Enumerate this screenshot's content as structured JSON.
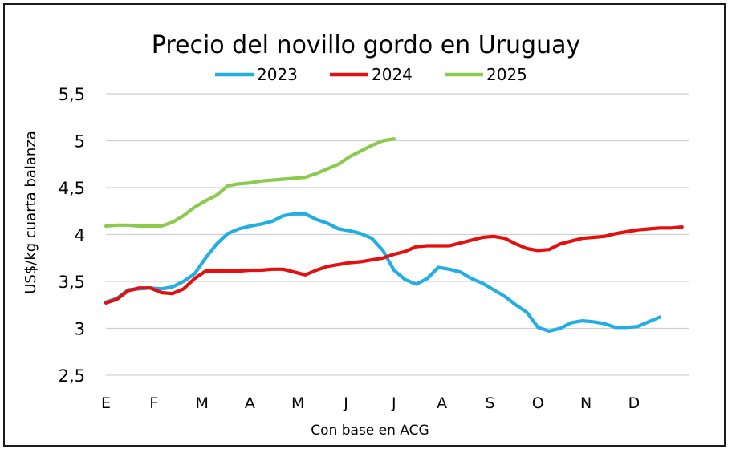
{
  "chart_data": {
    "type": "line",
    "title": "Precio del novillo gordo en Uruguay",
    "xlabel": "Con base en ACG",
    "ylabel": "US$/kg cuarta balanza",
    "ylim": [
      2.5,
      5.5
    ],
    "yticks": [
      "5,5",
      "5",
      "4,5",
      "4",
      "3,5",
      "3",
      "2,5"
    ],
    "ytick_values": [
      5.5,
      5,
      4.5,
      4,
      3.5,
      3,
      2.5
    ],
    "categories": [
      "E",
      "F",
      "M",
      "A",
      "M",
      "J",
      "J",
      "A",
      "S",
      "O",
      "N",
      "D"
    ],
    "month_positions": [
      0,
      4.33,
      8.67,
      13,
      17.33,
      21.67,
      26,
      30.33,
      34.67,
      39,
      43.33,
      47.67
    ],
    "x_unit": "week of year",
    "grid": true,
    "legend_position": "top",
    "series": [
      {
        "name": "2023",
        "color": "#22ade4",
        "x": [
          0,
          1,
          2,
          3,
          4,
          5,
          6,
          7,
          8,
          9,
          10,
          11,
          12,
          13,
          14,
          15,
          16,
          17,
          18,
          19,
          20,
          21,
          22,
          23,
          24,
          25,
          26,
          27,
          28,
          29,
          30,
          31,
          32,
          33,
          34,
          35,
          36,
          37,
          38,
          39,
          40,
          41,
          42,
          43,
          44,
          45,
          46,
          47,
          48,
          49,
          50
        ],
        "values": [
          3.28,
          3.32,
          3.41,
          3.42,
          3.43,
          3.42,
          3.44,
          3.5,
          3.58,
          3.75,
          3.9,
          4.01,
          4.06,
          4.09,
          4.11,
          4.14,
          4.2,
          4.22,
          4.22,
          4.16,
          4.12,
          4.06,
          4.04,
          4.01,
          3.96,
          3.83,
          3.62,
          3.52,
          3.47,
          3.53,
          3.65,
          3.63,
          3.6,
          3.53,
          3.48,
          3.41,
          3.34,
          3.25,
          3.17,
          3.01,
          2.97,
          3.0,
          3.06,
          3.08,
          3.07,
          3.05,
          3.01,
          3.01,
          3.02,
          3.07,
          3.12
        ]
      },
      {
        "name": "2024",
        "color": "#e31010",
        "x": [
          0,
          1,
          2,
          3,
          4,
          5,
          6,
          7,
          8,
          9,
          10,
          11,
          12,
          13,
          14,
          15,
          16,
          17,
          18,
          19,
          20,
          21,
          22,
          23,
          24,
          25,
          26,
          27,
          28,
          29,
          30,
          31,
          32,
          33,
          34,
          35,
          36,
          37,
          38,
          39,
          40,
          41,
          42,
          43,
          44,
          45,
          46,
          47,
          48,
          49,
          50,
          51,
          52
        ],
        "values": [
          3.27,
          3.31,
          3.4,
          3.43,
          3.43,
          3.38,
          3.37,
          3.42,
          3.53,
          3.61,
          3.61,
          3.61,
          3.61,
          3.62,
          3.62,
          3.63,
          3.63,
          3.6,
          3.57,
          3.62,
          3.66,
          3.68,
          3.7,
          3.71,
          3.73,
          3.75,
          3.79,
          3.82,
          3.87,
          3.88,
          3.88,
          3.88,
          3.91,
          3.94,
          3.97,
          3.98,
          3.96,
          3.9,
          3.85,
          3.83,
          3.84,
          3.9,
          3.93,
          3.96,
          3.97,
          3.98,
          4.01,
          4.03,
          4.05,
          4.06,
          4.07,
          4.07,
          4.08
        ]
      },
      {
        "name": "2025",
        "color": "#8cc94f",
        "x": [
          0,
          1,
          2,
          3,
          4,
          5,
          6,
          7,
          8,
          9,
          10,
          11,
          12,
          13,
          14,
          15,
          16,
          17,
          18,
          19,
          20,
          21,
          22,
          23,
          24,
          25,
          26
        ],
        "values": [
          4.09,
          4.1,
          4.1,
          4.09,
          4.09,
          4.09,
          4.13,
          4.2,
          4.29,
          4.36,
          4.42,
          4.52,
          4.54,
          4.55,
          4.57,
          4.58,
          4.59,
          4.6,
          4.61,
          4.65,
          4.7,
          4.75,
          4.83,
          4.89,
          4.95,
          5.0,
          5.02
        ]
      }
    ]
  }
}
